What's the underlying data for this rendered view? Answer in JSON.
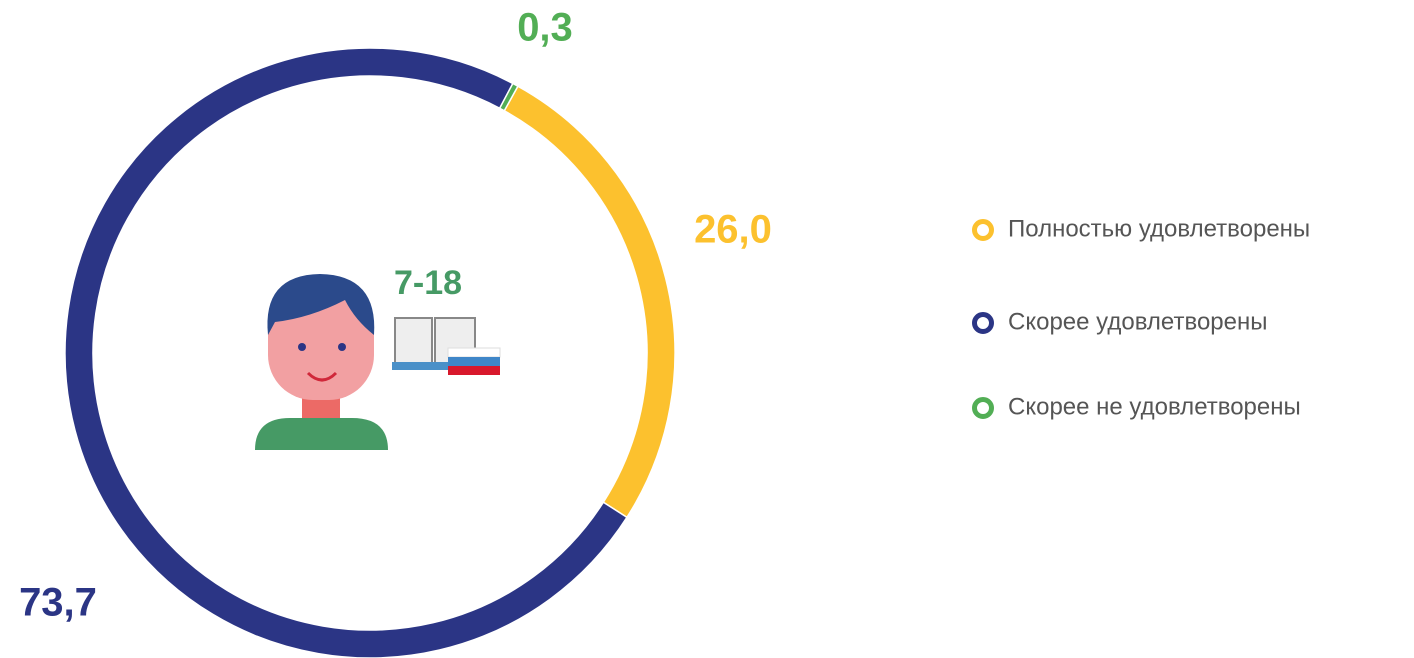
{
  "chart_data": {
    "type": "donut",
    "categories": [
      "Полностью удовлетворены",
      "Скорее удовлетворены",
      "Скорее не удовлетворены"
    ],
    "values": [
      26.0,
      73.7,
      0.3
    ],
    "value_labels": [
      "26,0",
      "73,7",
      "0,3"
    ],
    "colors": [
      "#fcc12e",
      "#2b3585",
      "#52ae55"
    ],
    "center_label": "7-18",
    "legend": true
  }
}
